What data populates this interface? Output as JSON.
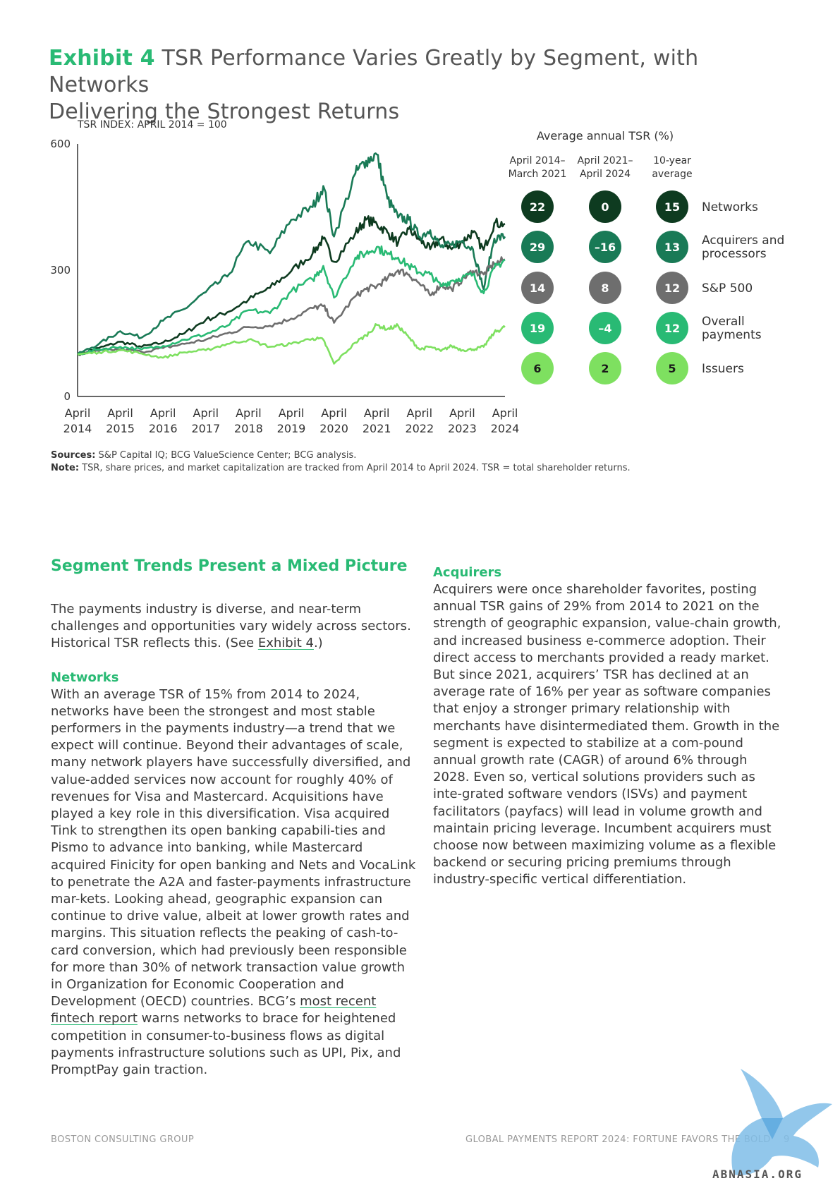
{
  "exhibit": {
    "label": "Exhibit 4",
    "title_line1": "TSR Performance Varies Greatly by Segment, with Networks",
    "title_line2": "Delivering the Strongest Returns"
  },
  "chart_data": {
    "type": "line",
    "index_label": "TSR INDEX: APRIL 2014 = 100",
    "ylim": [
      0,
      600
    ],
    "yticks": [
      "0",
      "300",
      "600"
    ],
    "xlim": [
      2014.25,
      2024.25
    ],
    "xticks": [
      {
        "line1": "April",
        "line2": "2014",
        "x": 2014.25
      },
      {
        "line1": "April",
        "line2": "2015",
        "x": 2015.25
      },
      {
        "line1": "April",
        "line2": "2016",
        "x": 2016.25
      },
      {
        "line1": "April",
        "line2": "2017",
        "x": 2017.25
      },
      {
        "line1": "April",
        "line2": "2018",
        "x": 2018.25
      },
      {
        "line1": "April",
        "line2": "2019",
        "x": 2019.25
      },
      {
        "line1": "April",
        "line2": "2020",
        "x": 2020.25
      },
      {
        "line1": "April",
        "line2": "2021",
        "x": 2021.25
      },
      {
        "line1": "April",
        "line2": "2022",
        "x": 2022.25
      },
      {
        "line1": "April",
        "line2": "2023",
        "x": 2023.25
      },
      {
        "line1": "April",
        "line2": "2024",
        "x": 2024.25
      }
    ],
    "series": [
      {
        "name": "Networks",
        "color": "#0e3b20",
        "x": [
          2014.25,
          2014.75,
          2015.25,
          2015.75,
          2016.25,
          2016.75,
          2017.25,
          2017.75,
          2018.25,
          2018.75,
          2019.25,
          2019.75,
          2020.0,
          2020.25,
          2020.75,
          2021.0,
          2021.25,
          2021.5,
          2021.75,
          2022.0,
          2022.25,
          2022.5,
          2022.75,
          2023.0,
          2023.25,
          2023.5,
          2023.75,
          2024.0,
          2024.25
        ],
        "y": [
          100,
          115,
          130,
          118,
          128,
          150,
          182,
          200,
          230,
          258,
          298,
          340,
          375,
          320,
          388,
          420,
          410,
          390,
          365,
          398,
          372,
          350,
          375,
          350,
          368,
          390,
          348,
          412,
          410
        ]
      },
      {
        "name": "Acquirers and processors",
        "color": "#197a56",
        "x": [
          2014.25,
          2014.75,
          2015.25,
          2015.75,
          2016.25,
          2016.75,
          2017.25,
          2017.75,
          2018.25,
          2018.75,
          2019.25,
          2019.75,
          2020.0,
          2020.25,
          2020.75,
          2021.0,
          2021.25,
          2021.5,
          2021.75,
          2022.0,
          2022.25,
          2022.5,
          2022.75,
          2023.0,
          2023.25,
          2023.5,
          2023.75,
          2024.0,
          2024.25
        ],
        "y": [
          100,
          125,
          155,
          140,
          180,
          208,
          248,
          285,
          370,
          340,
          420,
          450,
          500,
          380,
          530,
          560,
          575,
          470,
          425,
          420,
          380,
          395,
          355,
          360,
          370,
          350,
          255,
          375,
          380
        ]
      },
      {
        "name": "S&P 500",
        "color": "#6e6e6e",
        "x": [
          2014.25,
          2014.75,
          2015.25,
          2015.75,
          2016.25,
          2016.75,
          2017.25,
          2017.75,
          2018.25,
          2018.75,
          2019.25,
          2019.75,
          2020.0,
          2020.25,
          2020.75,
          2021.0,
          2021.25,
          2021.5,
          2021.75,
          2022.0,
          2022.25,
          2022.5,
          2022.75,
          2023.0,
          2023.25,
          2023.5,
          2023.75,
          2024.0,
          2024.25
        ],
        "y": [
          100,
          108,
          112,
          106,
          115,
          125,
          135,
          150,
          165,
          168,
          185,
          210,
          215,
          175,
          238,
          255,
          262,
          280,
          300,
          290,
          268,
          240,
          265,
          255,
          278,
          298,
          290,
          315,
          325
        ]
      },
      {
        "name": "Overall payments",
        "color": "#29ba74",
        "x": [
          2014.25,
          2014.75,
          2015.25,
          2015.75,
          2016.25,
          2016.75,
          2017.25,
          2017.75,
          2018.25,
          2018.75,
          2019.25,
          2019.75,
          2020.0,
          2020.25,
          2020.75,
          2021.0,
          2021.25,
          2021.5,
          2021.75,
          2022.0,
          2022.25,
          2022.5,
          2022.75,
          2023.0,
          2023.25,
          2023.5,
          2023.75,
          2024.0,
          2024.25
        ],
        "y": [
          100,
          112,
          118,
          112,
          120,
          135,
          148,
          168,
          205,
          198,
          250,
          278,
          310,
          235,
          330,
          340,
          355,
          338,
          330,
          310,
          295,
          290,
          262,
          275,
          282,
          290,
          245,
          305,
          325
        ]
      },
      {
        "name": "Issuers",
        "color": "#7ee060",
        "x": [
          2014.25,
          2014.75,
          2015.25,
          2015.75,
          2016.25,
          2016.75,
          2017.25,
          2017.75,
          2018.25,
          2018.75,
          2019.25,
          2019.75,
          2020.0,
          2020.25,
          2020.75,
          2021.0,
          2021.25,
          2021.5,
          2021.75,
          2022.0,
          2022.25,
          2022.5,
          2022.75,
          2023.0,
          2023.25,
          2023.5,
          2023.75,
          2024.0,
          2024.25
        ],
        "y": [
          100,
          105,
          110,
          102,
          92,
          105,
          110,
          125,
          135,
          118,
          125,
          138,
          135,
          78,
          128,
          145,
          170,
          160,
          168,
          140,
          112,
          118,
          108,
          120,
          110,
          112,
          118,
          152,
          165
        ]
      }
    ]
  },
  "tsr_table": {
    "heading": "Average annual TSR (%)",
    "columns": [
      {
        "line1": "April 2014–",
        "line2": "March 2021"
      },
      {
        "line1": "April 2021–",
        "line2": "April 2024"
      },
      {
        "line1": "10-year",
        "line2": "average"
      }
    ],
    "rows": [
      {
        "label1": "Networks",
        "label2": "",
        "values": [
          "22",
          "0",
          "15"
        ],
        "color": "#0e3b20",
        "text_color": "#ffffff"
      },
      {
        "label1": "Acquirers and",
        "label2": "processors",
        "values": [
          "29",
          "–16",
          "13"
        ],
        "color": "#197a56",
        "text_color": "#ffffff"
      },
      {
        "label1": "S&P 500",
        "label2": "",
        "values": [
          "14",
          "8",
          "12"
        ],
        "color": "#6e6e6e",
        "text_color": "#ffffff"
      },
      {
        "label1": "Overall",
        "label2": "payments",
        "values": [
          "19",
          "–4",
          "12"
        ],
        "color": "#29ba74",
        "text_color": "#ffffff"
      },
      {
        "label1": "Issuers",
        "label2": "",
        "values": [
          "6",
          "2",
          "5"
        ],
        "color": "#7ee060",
        "text_color": "#1a1a1a"
      }
    ]
  },
  "sources": {
    "sources_label": "Sources:",
    "sources_text": " S&P Capital IQ; BCG ValueScience Center; BCG analysis.",
    "note_label": "Note:",
    "note_text": " TSR, share prices, and market capitalization are tracked from April 2014 to April 2024. TSR =  total shareholder returns."
  },
  "left_column": {
    "section_title": "Segment Trends Present a Mixed Picture",
    "intro_before": "The payments industry is diverse, and near-term challenges and opportunities vary widely across sectors. Historical TSR reflects this. (See ",
    "intro_link": "Exhibit 4",
    "intro_after": ".)",
    "networks_heading": "Networks",
    "networks_before": "With an average TSR of 15% from 2014 to 2024, networks have been the strongest and most stable performers in the payments industry—a trend that we expect will continue. Beyond their advantages of scale, many network players have successfully diversified, and value-added services now account for roughly 40% of revenues for Visa and Mastercard. Acquisitions have played a key role in this diversification. Visa acquired Tink to strengthen its open banking capabili-ties and Pismo to advance into banking, while Mastercard acquired Finicity for open banking and Nets and VocaLink to penetrate the A2A and faster-payments infrastructure mar-kets. Looking ahead, geographic expansion can continue to drive value, albeit at lower growth rates and margins. This situation reflects the peaking of cash-to-card conversion, which had previously been responsible for more than 30% of network transaction value growth in Organization for Economic Cooperation and Development (OECD) countries. BCG’s ",
    "networks_link": "most recent fintech report",
    "networks_after": " warns networks to brace for heightened competition in consumer-to-business flows as digital payments infrastructure solutions such as UPI, Pix, and PromptPay gain traction."
  },
  "right_column": {
    "acquirers_heading": "Acquirers",
    "acquirers_text": "Acquirers were once shareholder favorites, posting annual TSR gains of 29% from 2014 to 2021 on the strength of geographic expansion, value-chain growth, and increased business e-commerce adoption. Their direct access to merchants provided a ready market. But since 2021, acquirers’ TSR has declined at an average rate of 16% per year as software companies that enjoy a stronger primary relationship with merchants have disintermediated them. Growth in the segment is expected to stabilize at a com-pound annual growth rate (CAGR) of around 6% through 2028. Even so, vertical solutions providers such as inte-grated software vendors (ISVs) and payment facilitators (payfacs) will lead in volume growth and maintain pricing leverage. Incumbent acquirers must choose now between maximizing volume as a flexible backend or securing pricing premiums through industry-specific vertical differentiation."
  },
  "footer": {
    "left": "BOSTON CONSULTING GROUP",
    "right": "GLOBAL PAYMENTS REPORT 2024: FORTUNE FAVORS THE BOLD",
    "page": "9"
  },
  "watermark": {
    "text": "ABNASIA.ORG"
  }
}
